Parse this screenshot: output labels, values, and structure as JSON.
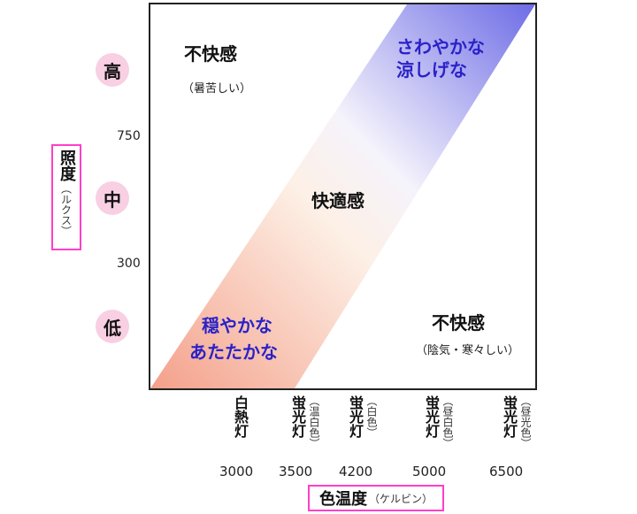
{
  "regions": {
    "top_left": {
      "title": "不快感",
      "note": "（暑苦しい）"
    },
    "top_right": {
      "line1": "さわやかな",
      "line2": "涼しげな"
    },
    "center": {
      "title": "快適感"
    },
    "bottom_left": {
      "line1": "穏やかな",
      "line2": "あたたかな"
    },
    "bottom_right": {
      "title": "不快感",
      "note": "（陰気・寒々しい）"
    }
  },
  "y_axis": {
    "title": "照度",
    "unit": "（ルクス）",
    "levels": [
      "高",
      "中",
      "低"
    ],
    "ticks": [
      "750",
      "300"
    ]
  },
  "x_axis": {
    "title": "色温度",
    "unit": "（ケルビン）",
    "lamps": [
      {
        "name": "白熱灯",
        "note": "",
        "kelvin": "3000"
      },
      {
        "name": "蛍光灯",
        "note": "（温白色）",
        "kelvin": "3500"
      },
      {
        "name": "蛍光灯",
        "note": "（白色）",
        "kelvin": "4200"
      },
      {
        "name": "蛍光灯",
        "note": "（昼白色）",
        "kelvin": "5000"
      },
      {
        "name": "蛍光灯",
        "note": "（昼光色）",
        "kelvin": "6500"
      }
    ]
  },
  "colors": {
    "warm": "#f4a08a",
    "mid": "#fdf0e6",
    "cool": "#6d6ce6",
    "accent_text": "#2a22c8",
    "pink": "#ff3fc8",
    "circle": "#f8cfe3"
  }
}
